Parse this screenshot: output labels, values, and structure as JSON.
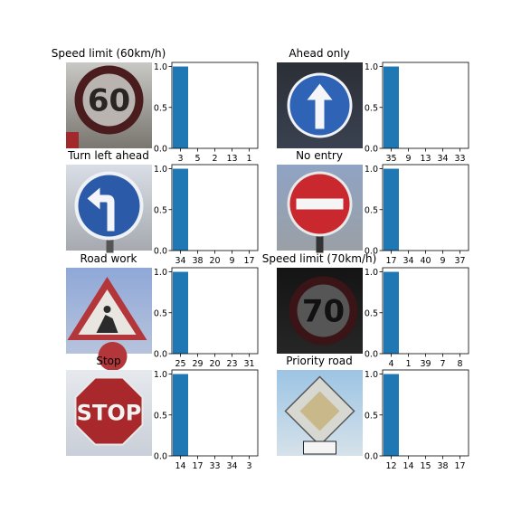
{
  "chart_data": [
    {
      "type": "bar",
      "title": "Speed limit (60km/h)",
      "sign": "speed-60",
      "categories": [
        "3",
        "5",
        "2",
        "13",
        "1"
      ],
      "values": [
        1.0,
        0,
        0,
        0,
        0
      ],
      "ylim": [
        0,
        1.05
      ],
      "yticks": [
        "0.0",
        "0.5",
        "1.0"
      ]
    },
    {
      "type": "bar",
      "title": "Ahead only",
      "sign": "ahead-only",
      "categories": [
        "35",
        "9",
        "13",
        "34",
        "33"
      ],
      "values": [
        1.0,
        0,
        0,
        0,
        0
      ],
      "ylim": [
        0,
        1.05
      ],
      "yticks": [
        "0.0",
        "0.5",
        "1.0"
      ]
    },
    {
      "type": "bar",
      "title": "Turn left ahead",
      "sign": "turn-left",
      "categories": [
        "34",
        "38",
        "20",
        "9",
        "17"
      ],
      "values": [
        1.0,
        0,
        0,
        0,
        0
      ],
      "ylim": [
        0,
        1.05
      ],
      "yticks": [
        "0.0",
        "0.5",
        "1.0"
      ]
    },
    {
      "type": "bar",
      "title": "No entry",
      "sign": "no-entry",
      "categories": [
        "17",
        "34",
        "40",
        "9",
        "37"
      ],
      "values": [
        1.0,
        0,
        0,
        0,
        0
      ],
      "ylim": [
        0,
        1.05
      ],
      "yticks": [
        "0.0",
        "0.5",
        "1.0"
      ]
    },
    {
      "type": "bar",
      "title": "Road work",
      "sign": "road-work",
      "categories": [
        "25",
        "29",
        "20",
        "23",
        "31"
      ],
      "values": [
        1.0,
        0,
        0,
        0,
        0
      ],
      "ylim": [
        0,
        1.05
      ],
      "yticks": [
        "0.0",
        "0.5",
        "1.0"
      ]
    },
    {
      "type": "bar",
      "title": "Speed limit (70km/h)",
      "sign": "speed-70",
      "categories": [
        "4",
        "1",
        "39",
        "7",
        "8"
      ],
      "values": [
        1.0,
        0,
        0,
        0,
        0
      ],
      "ylim": [
        0,
        1.05
      ],
      "yticks": [
        "0.0",
        "0.5",
        "1.0"
      ]
    },
    {
      "type": "bar",
      "title": "Stop",
      "sign": "stop",
      "categories": [
        "14",
        "17",
        "33",
        "34",
        "3"
      ],
      "values": [
        1.0,
        0,
        0,
        0,
        0
      ],
      "ylim": [
        0,
        1.05
      ],
      "yticks": [
        "0.0",
        "0.5",
        "1.0"
      ]
    },
    {
      "type": "bar",
      "title": "Priority road",
      "sign": "priority-road",
      "categories": [
        "12",
        "14",
        "15",
        "38",
        "17"
      ],
      "values": [
        1.0,
        0,
        0,
        0,
        0
      ],
      "ylim": [
        0,
        1.05
      ],
      "yticks": [
        "0.0",
        "0.5",
        "1.0"
      ]
    }
  ],
  "colors": {
    "bar": "#1f77b4",
    "axis": "#000000"
  },
  "sign_texts": {
    "speed-60": "60",
    "speed-70": "70",
    "stop": "STOP"
  }
}
